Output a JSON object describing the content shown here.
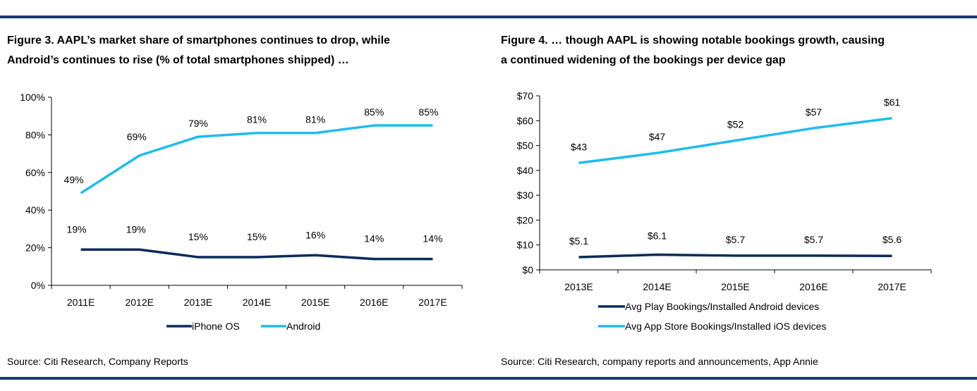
{
  "colors": {
    "rule": "#1f3a70",
    "dark_series": "#0b2a5b",
    "light_series": "#1fbcec",
    "axis": "#000000"
  },
  "chart_data": [
    {
      "type": "line",
      "title_lines": [
        "Figure 3. AAPL’s market share of smartphones continues to drop, while",
        "Android’s continues to rise (% of total smartphones shipped) …"
      ],
      "categories": [
        "2011E",
        "2012E",
        "2013E",
        "2014E",
        "2015E",
        "2016E",
        "2017E"
      ],
      "ylim": [
        0,
        100
      ],
      "yticks": [
        "0%",
        "20%",
        "40%",
        "60%",
        "80%",
        "100%"
      ],
      "series": [
        {
          "name": "iPhone OS",
          "color": "#0b2a5b",
          "values": [
            19,
            19,
            15,
            15,
            16,
            14,
            14
          ],
          "labels": [
            "19%",
            "19%",
            "15%",
            "15%",
            "16%",
            "14%",
            "14%"
          ]
        },
        {
          "name": "Android",
          "color": "#1fbcec",
          "values": [
            49,
            69,
            79,
            81,
            81,
            85,
            85
          ],
          "labels": [
            "49%",
            "69%",
            "79%",
            "81%",
            "81%",
            "85%",
            "85%"
          ]
        }
      ],
      "legend": "bottom",
      "source": "Source: Citi Research, Company Reports"
    },
    {
      "type": "line",
      "title_lines": [
        "Figure 4. … though AAPL is showing notable bookings growth, causing",
        "a continued widening of the bookings per device gap"
      ],
      "categories": [
        "2013E",
        "2014E",
        "2015E",
        "2016E",
        "2017E"
      ],
      "ylim": [
        0,
        70
      ],
      "yticks": [
        "$0",
        "$10",
        "$20",
        "$30",
        "$40",
        "$50",
        "$60",
        "$70"
      ],
      "series": [
        {
          "name": "Avg Play Bookings/Installed Android devices",
          "color": "#0b2a5b",
          "values": [
            5.1,
            6.1,
            5.7,
            5.7,
            5.6
          ],
          "labels": [
            "$5.1",
            "$6.1",
            "$5.7",
            "$5.7",
            "$5.6"
          ]
        },
        {
          "name": "Avg App Store Bookings/Installed iOS devices",
          "color": "#1fbcec",
          "values": [
            43,
            47,
            52,
            57,
            61
          ],
          "labels": [
            "$43",
            "$47",
            "$52",
            "$57",
            "$61"
          ]
        }
      ],
      "legend": "bottom",
      "source": "Source: Citi Research, company reports and announcements, App Annie"
    }
  ]
}
